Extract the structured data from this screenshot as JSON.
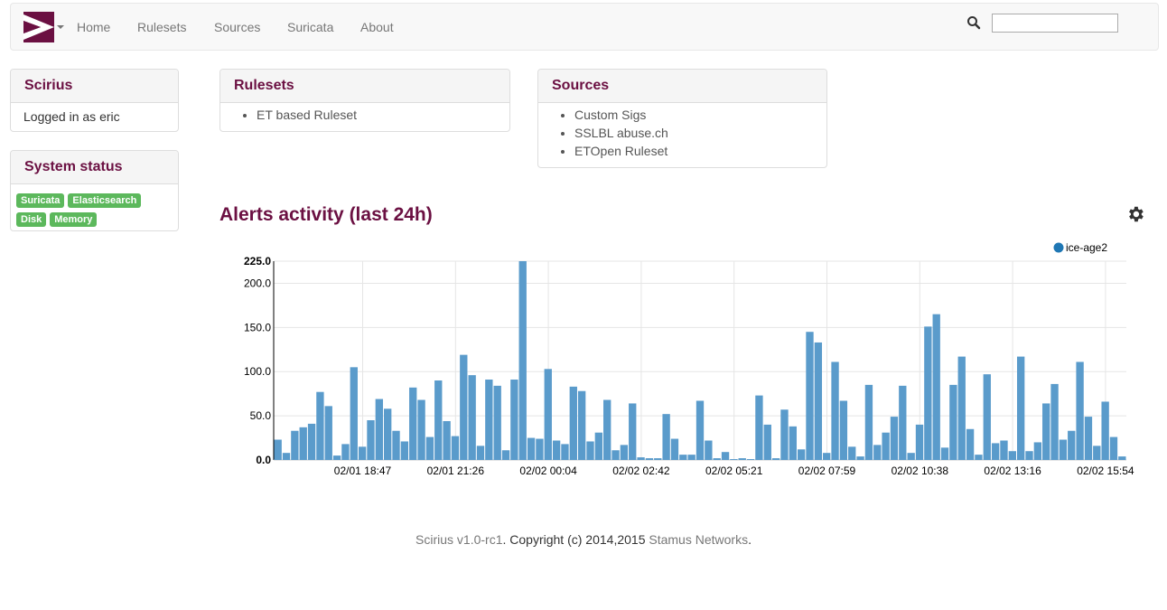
{
  "navbar": {
    "brand_logo": "scirius-logo",
    "links": [
      "Home",
      "Rulesets",
      "Sources",
      "Suricata",
      "About"
    ],
    "search": {
      "value": "",
      "icon": "search-icon"
    }
  },
  "scirius_panel": {
    "title": "Scirius",
    "login_prefix": "Logged in as",
    "username": "eric"
  },
  "status_panel": {
    "title": "System status",
    "badges": [
      "Suricata",
      "Elasticsearch",
      "Disk",
      "Memory"
    ],
    "badge_color": "#5cb85c"
  },
  "rulesets_panel": {
    "title": "Rulesets",
    "items": [
      "ET based Ruleset"
    ]
  },
  "sources_panel": {
    "title": "Sources",
    "items": [
      "Custom Sigs",
      "SSLBL abuse.ch",
      "ETOpen Ruleset"
    ]
  },
  "alerts": {
    "title": "Alerts activity (last 24h)",
    "settings_icon": "gear-icon"
  },
  "chart_data": {
    "type": "bar",
    "title": "",
    "xlabel": "",
    "ylabel": "",
    "ylim": [
      0,
      225
    ],
    "y_ticks": [
      "0.0",
      "50.0",
      "100.0",
      "150.0",
      "200.0",
      "225.0"
    ],
    "x_tick_labels": [
      "02/01 18:47",
      "02/01 21:26",
      "02/02 00:04",
      "02/02 02:42",
      "02/02 05:21",
      "02/02 07:59",
      "02/02 10:38",
      "02/02 13:16",
      "02/02 15:54"
    ],
    "grid": true,
    "legend": "top-right",
    "bar_color": "#5a9bcb",
    "series": [
      {
        "name": "ice-age2",
        "values": [
          23,
          8,
          33,
          37,
          41,
          77,
          61,
          5,
          18,
          105,
          15,
          45,
          69,
          58,
          33,
          21,
          82,
          68,
          26,
          90,
          44,
          27,
          119,
          96,
          16,
          91,
          84,
          11,
          91,
          225,
          25,
          24,
          103,
          22,
          18,
          83,
          78,
          21,
          31,
          68,
          11,
          17,
          64,
          3,
          2,
          2,
          52,
          24,
          6,
          6,
          67,
          22,
          2,
          9,
          1,
          2,
          1,
          73,
          40,
          2,
          57,
          38,
          12,
          145,
          133,
          8,
          111,
          67,
          15,
          4,
          85,
          17,
          31,
          49,
          84,
          8,
          40,
          151,
          165,
          14,
          85,
          117,
          35,
          6,
          97,
          19,
          22,
          10,
          117,
          10,
          20,
          64,
          86,
          23,
          33,
          111,
          49,
          16,
          66,
          26,
          4
        ]
      }
    ]
  },
  "footer": {
    "version": "Scirius v1.0-rc1",
    "copyright": "Copyright (c) 2014,2015",
    "company": "Stamus Networks"
  }
}
